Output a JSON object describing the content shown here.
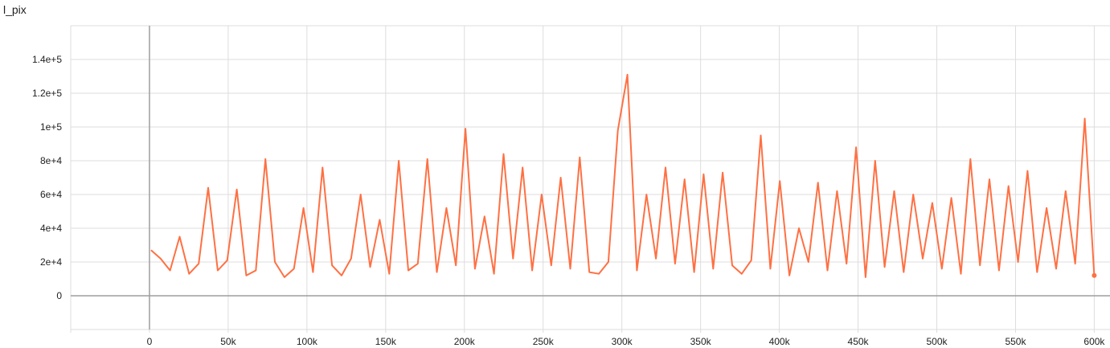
{
  "chart_data": {
    "type": "line",
    "title": "l_pix",
    "xlabel": "",
    "ylabel": "",
    "xlim": [
      -50000,
      610000
    ],
    "ylim": [
      -20000,
      160000
    ],
    "x_ticks": [
      0,
      50000,
      100000,
      150000,
      200000,
      250000,
      300000,
      350000,
      400000,
      450000,
      500000,
      550000,
      600000
    ],
    "x_tick_labels": [
      "0",
      "50k",
      "100k",
      "150k",
      "200k",
      "250k",
      "300k",
      "350k",
      "400k",
      "450k",
      "500k",
      "550k",
      "600k"
    ],
    "y_ticks": [
      0,
      20000,
      40000,
      60000,
      80000,
      100000,
      120000,
      140000
    ],
    "y_tick_labels": [
      "0",
      "2e+4",
      "4e+4",
      "6e+4",
      "8e+4",
      "1e+5",
      "1.2e+5",
      "1.4e+5"
    ],
    "grid": true,
    "colors": {
      "series": "#ff7043",
      "grid": "#dddddd",
      "axis": "#9e9e9e"
    },
    "series": [
      {
        "x_start": 1000,
        "x_end": 600000,
        "points": 100,
        "values": [
          27000,
          22000,
          15000,
          35000,
          13000,
          19000,
          64000,
          15000,
          21000,
          63000,
          12000,
          15000,
          81000,
          20000,
          11000,
          16000,
          52000,
          14000,
          76000,
          18000,
          12000,
          22000,
          60000,
          17000,
          45000,
          13000,
          80000,
          15000,
          19000,
          81000,
          14000,
          52000,
          18000,
          99000,
          16000,
          47000,
          13000,
          84000,
          22000,
          76000,
          15000,
          60000,
          18000,
          70000,
          16000,
          82000,
          14000,
          13000,
          20000,
          98000,
          131000,
          15000,
          60000,
          22000,
          76000,
          19000,
          69000,
          14000,
          72000,
          16000,
          73000,
          18000,
          13000,
          21000,
          95000,
          16000,
          68000,
          12000,
          40000,
          20000,
          67000,
          15000,
          62000,
          19000,
          88000,
          11000,
          80000,
          17000,
          62000,
          14000,
          60000,
          22000,
          55000,
          16000,
          58000,
          13000,
          81000,
          18000,
          69000,
          15000,
          65000,
          20000,
          74000,
          14000,
          52000,
          16000,
          62000,
          19000,
          105000,
          12000
        ]
      }
    ]
  }
}
